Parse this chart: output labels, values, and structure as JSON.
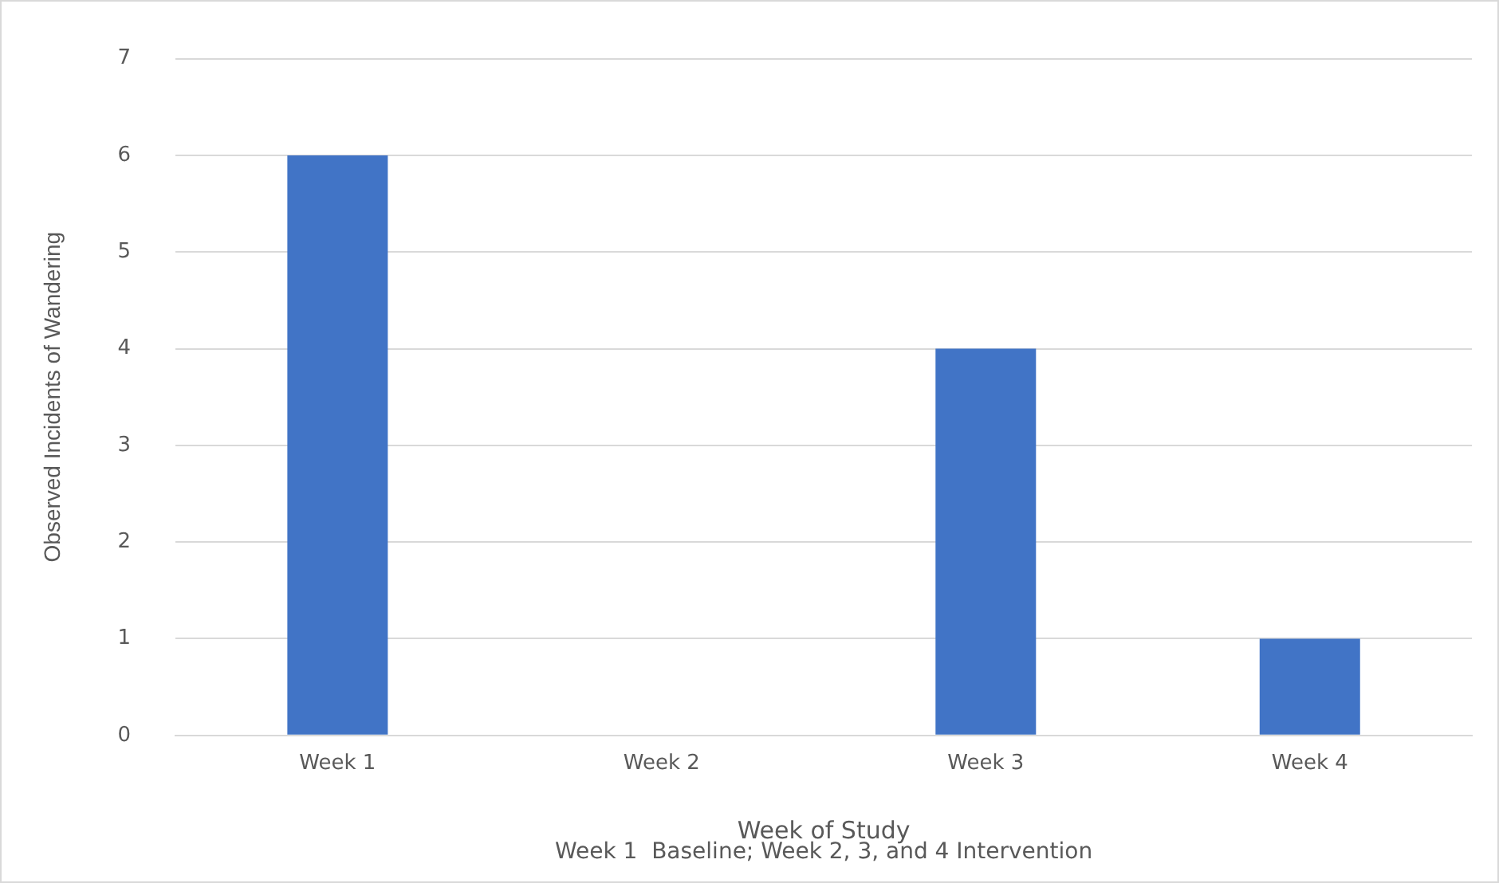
{
  "chart_data": {
    "type": "bar",
    "xlabel": "Week of Study",
    "ylabel": "Observed Incidents of Wandering",
    "annotations": [
      "Week 1  Baseline; Week 2, 3, and 4 Intervention"
    ],
    "categories": [
      "Week 1",
      "Week 2",
      "Week 3",
      "Week 4"
    ],
    "values": [
      6,
      0,
      4,
      1
    ],
    "color": "#4174c6",
    "ylim": [
      0,
      7
    ],
    "yticks": [
      0,
      1,
      2,
      3,
      4,
      5,
      6,
      7
    ],
    "grid": "y",
    "legend": false
  }
}
